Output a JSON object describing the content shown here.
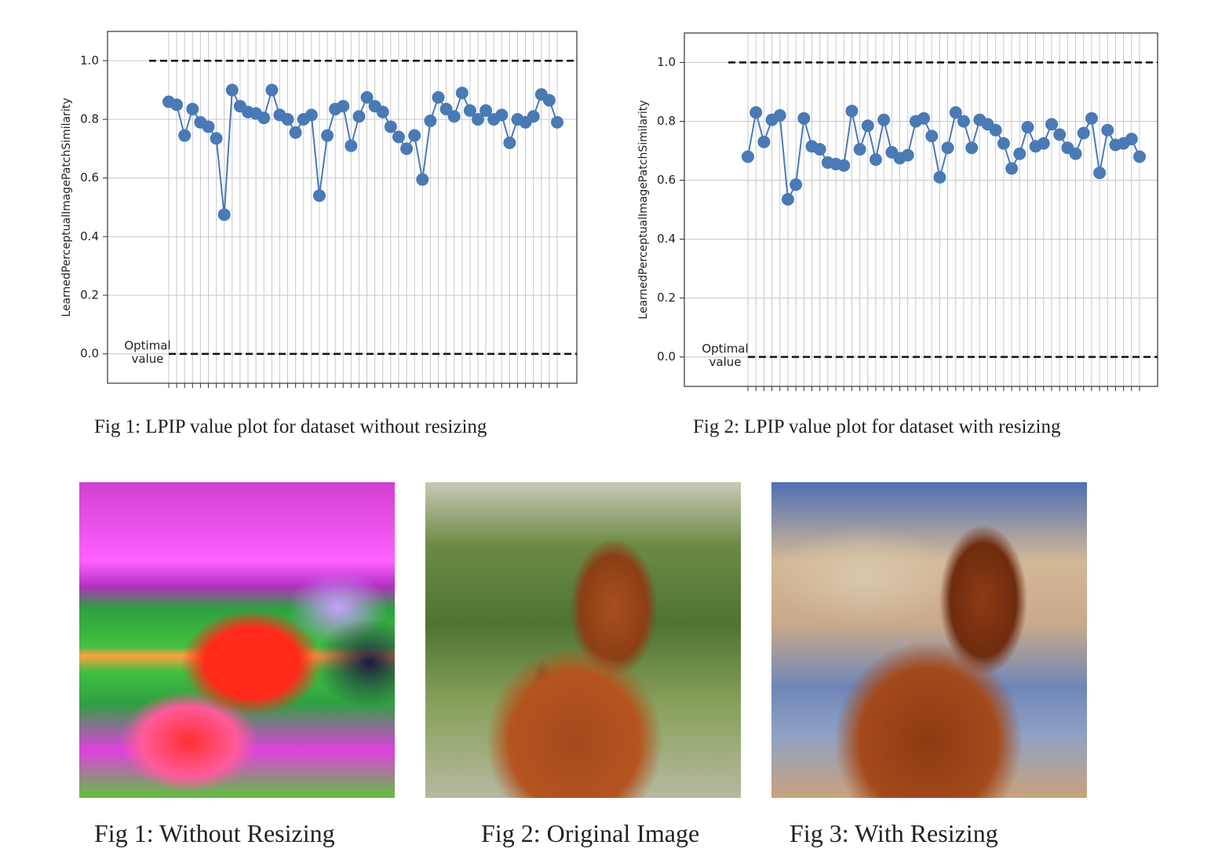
{
  "chart_data": [
    {
      "type": "line",
      "caption": "Fig 1: LPIP value plot for dataset without resizing",
      "ylabel": "LearnedPerceptualImagePatchSimilarity",
      "annotation": "Optimal value",
      "categories": [
        null,
        null,
        null,
        null,
        null,
        null,
        null,
        null,
        null,
        null,
        null,
        null,
        null,
        null,
        null,
        null,
        null,
        null,
        null,
        null,
        null,
        null,
        null,
        null,
        null,
        null,
        null,
        null,
        null,
        null,
        null,
        null,
        null,
        null,
        null,
        null,
        null,
        null,
        null,
        null,
        null,
        null,
        null,
        null,
        null,
        null,
        null,
        null,
        null,
        null
      ],
      "series": [
        {
          "color": "#4a7ab5",
          "values": [
            0.86,
            0.85,
            0.745,
            0.835,
            0.79,
            0.775,
            0.735,
            0.475,
            0.9,
            0.845,
            0.825,
            0.82,
            0.805,
            0.9,
            0.815,
            0.8,
            0.755,
            0.8,
            0.815,
            0.54,
            0.745,
            0.835,
            0.845,
            0.71,
            0.81,
            0.875,
            0.845,
            0.825,
            0.775,
            0.74,
            0.7,
            0.745,
            0.595,
            0.795,
            0.875,
            0.835,
            0.81,
            0.89,
            0.83,
            0.8,
            0.83,
            0.8,
            0.815,
            0.72,
            0.8,
            0.79,
            0.81,
            0.885,
            0.865,
            0.79
          ]
        }
      ],
      "hlines": [
        1,
        0
      ],
      "ylim": [
        -0.1,
        1.1
      ],
      "yticks": [
        {
          "value": 0,
          "label": "0.0"
        },
        0.2,
        0.4,
        0.6,
        0.8,
        {
          "value": 1,
          "label": "1.0"
        }
      ],
      "grid": true
    },
    {
      "type": "line",
      "caption": "Fig 2: LPIP value plot for dataset with resizing",
      "ylabel": "LearnedPerceptualImagePatchSimilarity",
      "annotation": "Optimal value",
      "categories": [
        null,
        null,
        null,
        null,
        null,
        null,
        null,
        null,
        null,
        null,
        null,
        null,
        null,
        null,
        null,
        null,
        null,
        null,
        null,
        null,
        null,
        null,
        null,
        null,
        null,
        null,
        null,
        null,
        null,
        null,
        null,
        null,
        null,
        null,
        null,
        null,
        null,
        null,
        null,
        null,
        null,
        null,
        null,
        null,
        null,
        null,
        null,
        null,
        null,
        null
      ],
      "series": [
        {
          "color": "#4a7ab5",
          "values": [
            0.68,
            0.83,
            0.73,
            0.805,
            0.82,
            0.535,
            0.585,
            0.81,
            0.715,
            0.705,
            0.66,
            0.655,
            0.65,
            0.835,
            0.705,
            0.785,
            0.67,
            0.805,
            0.695,
            0.675,
            0.685,
            0.8,
            0.81,
            0.75,
            0.61,
            0.71,
            0.83,
            0.8,
            0.71,
            0.805,
            0.79,
            0.77,
            0.725,
            0.64,
            0.69,
            0.78,
            0.715,
            0.725,
            0.79,
            0.755,
            0.71,
            0.69,
            0.76,
            0.81,
            0.625,
            0.77,
            0.72,
            0.725,
            0.74,
            0.68
          ]
        }
      ],
      "hlines": [
        1,
        0
      ],
      "ylim": [
        -0.1,
        1.1
      ],
      "yticks": [
        {
          "value": 0,
          "label": "0.0"
        },
        0.2,
        0.4,
        0.6,
        0.8,
        {
          "value": 1,
          "label": "1.0"
        }
      ],
      "grid": true
    }
  ],
  "images": [
    {
      "caption": "Fig 1: Without Resizing"
    },
    {
      "caption": "Fig 2: Original Image"
    },
    {
      "caption": "Fig 3: With Resizing"
    }
  ]
}
